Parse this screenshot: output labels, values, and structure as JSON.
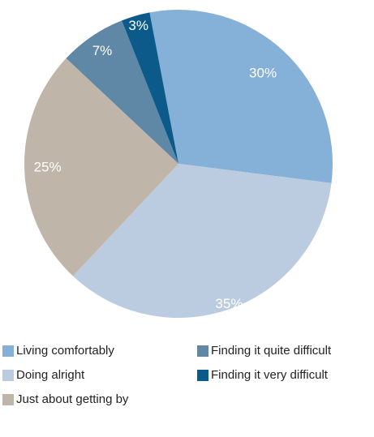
{
  "chart_data": {
    "type": "pie",
    "categories": [
      "Living comfortably",
      "Doing alright",
      "Just about getting by",
      "Finding it quite difficult",
      "Finding it very difficult"
    ],
    "values": [
      30,
      35,
      25,
      7,
      3
    ],
    "value_labels": [
      "30%",
      "35%",
      "25%",
      "7%",
      "3%"
    ],
    "colors": [
      "#85b0d7",
      "#bccce0",
      "#bfb5a9",
      "#5f87a6",
      "#0c5a8a"
    ]
  }
}
